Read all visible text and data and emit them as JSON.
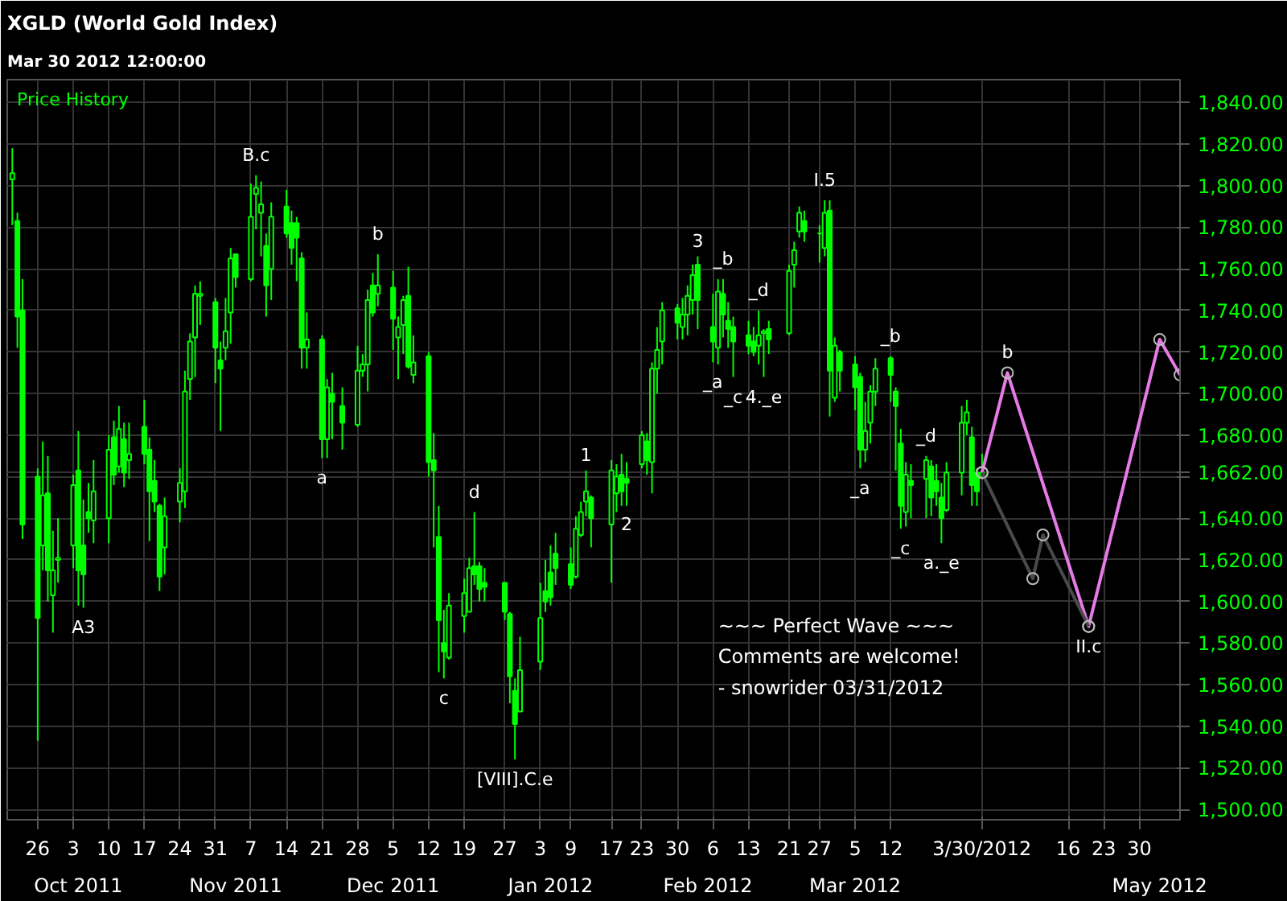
{
  "chart_data": {
    "type": "candlestick",
    "title": "XGLD (World Gold Index)",
    "subtitle": "Mar 30 2012 12:00:00",
    "color": "#00ff00",
    "x": [
      "2011-09-21",
      "2011-09-22",
      "2011-09-23",
      "2011-09-26",
      "2011-09-27",
      "2011-09-28",
      "2011-09-29",
      "2011-09-30",
      "2011-10-03",
      "2011-10-04",
      "2011-10-05",
      "2011-10-06",
      "2011-10-07",
      "2011-10-10",
      "2011-10-11",
      "2011-10-12",
      "2011-10-13",
      "2011-10-14",
      "2011-10-17",
      "2011-10-18",
      "2011-10-19",
      "2011-10-20",
      "2011-10-21",
      "2011-10-24",
      "2011-10-25",
      "2011-10-26",
      "2011-10-27",
      "2011-10-28",
      "2011-10-31",
      "2011-11-01",
      "2011-11-02",
      "2011-11-03",
      "2011-11-04",
      "2011-11-07",
      "2011-11-08",
      "2011-11-09",
      "2011-11-10",
      "2011-11-11",
      "2011-11-14",
      "2011-11-15",
      "2011-11-16",
      "2011-11-17",
      "2011-11-18",
      "2011-11-21",
      "2011-11-22",
      "2011-11-23",
      "2011-11-25",
      "2011-11-28",
      "2011-11-29",
      "2011-11-30",
      "2011-12-01",
      "2011-12-02",
      "2011-12-05",
      "2011-12-06",
      "2011-12-07",
      "2011-12-08",
      "2011-12-09",
      "2011-12-12",
      "2011-12-13",
      "2011-12-14",
      "2011-12-15",
      "2011-12-16",
      "2011-12-19",
      "2011-12-20",
      "2011-12-21",
      "2011-12-22",
      "2011-12-23",
      "2011-12-27",
      "2011-12-28",
      "2011-12-29",
      "2011-12-30",
      "2012-01-03",
      "2012-01-04",
      "2012-01-05",
      "2012-01-06",
      "2012-01-09",
      "2012-01-10",
      "2012-01-11",
      "2012-01-12",
      "2012-01-13",
      "2012-01-17",
      "2012-01-18",
      "2012-01-19",
      "2012-01-20",
      "2012-01-23",
      "2012-01-24",
      "2012-01-25",
      "2012-01-26",
      "2012-01-27",
      "2012-01-30",
      "2012-01-31",
      "2012-02-01",
      "2012-02-02",
      "2012-02-03",
      "2012-02-06",
      "2012-02-07",
      "2012-02-08",
      "2012-02-09",
      "2012-02-10",
      "2012-02-13",
      "2012-02-14",
      "2012-02-15",
      "2012-02-16",
      "2012-02-17",
      "2012-02-21",
      "2012-02-22",
      "2012-02-23",
      "2012-02-24",
      "2012-02-27",
      "2012-02-28",
      "2012-02-29",
      "2012-03-01",
      "2012-03-02",
      "2012-03-05",
      "2012-03-06",
      "2012-03-07",
      "2012-03-08",
      "2012-03-09",
      "2012-03-12",
      "2012-03-13",
      "2012-03-14",
      "2012-03-15",
      "2012-03-16",
      "2012-03-19",
      "2012-03-20",
      "2012-03-21",
      "2012-03-22",
      "2012-03-23",
      "2012-03-26",
      "2012-03-27",
      "2012-03-28",
      "2012-03-29",
      "2012-03-30"
    ],
    "ohlc": [
      [
        1803,
        1818,
        1781,
        1806
      ],
      [
        1783,
        1787,
        1722,
        1737
      ],
      [
        1740,
        1755,
        1630,
        1637
      ],
      [
        1660,
        1664,
        1533,
        1592
      ],
      [
        1627,
        1677,
        1615,
        1651
      ],
      [
        1652,
        1670,
        1600,
        1615
      ],
      [
        1603,
        1634,
        1585,
        1615
      ],
      [
        1620,
        1640,
        1609,
        1621
      ],
      [
        1627,
        1661,
        1616,
        1656
      ],
      [
        1663,
        1682,
        1598,
        1615
      ],
      [
        1627,
        1649,
        1597,
        1613
      ],
      [
        1643,
        1657,
        1633,
        1640
      ],
      [
        1639,
        1668,
        1628,
        1653
      ],
      [
        1640,
        1680,
        1628,
        1673
      ],
      [
        1679,
        1687,
        1656,
        1661
      ],
      [
        1665,
        1694,
        1662,
        1683
      ],
      [
        1678,
        1686,
        1655,
        1662
      ],
      [
        1668,
        1686,
        1659,
        1671
      ],
      [
        1684,
        1697,
        1666,
        1671
      ],
      [
        1673,
        1679,
        1629,
        1653
      ],
      [
        1658,
        1668,
        1643,
        1648
      ],
      [
        1646,
        1647,
        1605,
        1612
      ],
      [
        1626,
        1650,
        1613,
        1641
      ],
      [
        1648,
        1664,
        1638,
        1657
      ],
      [
        1653,
        1711,
        1645,
        1701
      ],
      [
        1707,
        1729,
        1697,
        1725
      ],
      [
        1727,
        1752,
        1708,
        1748
      ],
      [
        1747,
        1754,
        1733,
        1748
      ],
      [
        1744,
        1746,
        1705,
        1722
      ],
      [
        1716,
        1725,
        1682,
        1712
      ],
      [
        1722,
        1746,
        1716,
        1730
      ],
      [
        1739,
        1770,
        1724,
        1765
      ],
      [
        1767,
        1767,
        1751,
        1756
      ],
      [
        1755,
        1801,
        1754,
        1785
      ],
      [
        1796,
        1805,
        1779,
        1799
      ],
      [
        1787,
        1802,
        1766,
        1791
      ],
      [
        1771,
        1777,
        1737,
        1752
      ],
      [
        1760,
        1792,
        1745,
        1785
      ],
      [
        1790,
        1798,
        1775,
        1777
      ],
      [
        1782,
        1788,
        1762,
        1770
      ],
      [
        1782,
        1785,
        1754,
        1775
      ],
      [
        1765,
        1768,
        1712,
        1722
      ],
      [
        1722,
        1739,
        1712,
        1726
      ],
      [
        1726,
        1728,
        1669,
        1678
      ],
      [
        1678,
        1707,
        1669,
        1703
      ],
      [
        1700,
        1710,
        1678,
        1696
      ],
      [
        1694,
        1703,
        1673,
        1686
      ],
      [
        1685,
        1723,
        1684,
        1711
      ],
      [
        1711,
        1719,
        1708,
        1714
      ],
      [
        1714,
        1750,
        1701,
        1745
      ],
      [
        1752,
        1758,
        1737,
        1739
      ],
      [
        1748,
        1767,
        1742,
        1752
      ],
      [
        1751,
        1759,
        1721,
        1736
      ],
      [
        1727,
        1737,
        1707,
        1732
      ],
      [
        1733,
        1747,
        1719,
        1745
      ],
      [
        1747,
        1761,
        1712,
        1713
      ],
      [
        1709,
        1728,
        1705,
        1715
      ],
      [
        1718,
        1720,
        1660,
        1667
      ],
      [
        1668,
        1681,
        1626,
        1663
      ],
      [
        1631,
        1646,
        1566,
        1591
      ],
      [
        1580,
        1596,
        1563,
        1576
      ],
      [
        1573,
        1604,
        1572,
        1598
      ],
      [
        1593,
        1611,
        1585,
        1604
      ],
      [
        1595,
        1621,
        1595,
        1616
      ],
      [
        1617,
        1643,
        1608,
        1613
      ],
      [
        1617,
        1619,
        1600,
        1606
      ],
      [
        1609,
        1616,
        1600,
        1607
      ],
      [
        1609,
        1609,
        1591,
        1595
      ],
      [
        1594,
        1595,
        1551,
        1564
      ],
      [
        1557,
        1563,
        1524,
        1541
      ],
      [
        1547,
        1583,
        1547,
        1567
      ],
      [
        1571,
        1609,
        1567,
        1592
      ],
      [
        1605,
        1620,
        1595,
        1600
      ],
      [
        1614,
        1627,
        1598,
        1602
      ],
      [
        1623,
        1633,
        1608,
        1616
      ],
      [
        1618,
        1626,
        1606,
        1608
      ],
      [
        1612,
        1641,
        1611,
        1635
      ],
      [
        1632,
        1648,
        1631,
        1643
      ],
      [
        1648,
        1663,
        1641,
        1653
      ],
      [
        1650,
        1651,
        1626,
        1640
      ],
      [
        1637,
        1668,
        1609,
        1663
      ],
      [
        1652,
        1666,
        1643,
        1660
      ],
      [
        1661,
        1671,
        1646,
        1653
      ],
      [
        1659,
        1667,
        1646,
        1657
      ],
      [
        1666,
        1682,
        1664,
        1680
      ],
      [
        1677,
        1681,
        1661,
        1668
      ],
      [
        1667,
        1715,
        1652,
        1712
      ],
      [
        1712,
        1732,
        1700,
        1721
      ],
      [
        1725,
        1744,
        1714,
        1740
      ],
      [
        1741,
        1743,
        1726,
        1734
      ],
      [
        1732,
        1746,
        1726,
        1738
      ],
      [
        1738,
        1752,
        1728,
        1747
      ],
      [
        1745,
        1762,
        1738,
        1757
      ],
      [
        1762,
        1766,
        1731,
        1745
      ],
      [
        1732,
        1748,
        1715,
        1725
      ],
      [
        1722,
        1755,
        1714,
        1749
      ],
      [
        1748,
        1755,
        1727,
        1738
      ],
      [
        1735,
        1744,
        1722,
        1731
      ],
      [
        1732,
        1737,
        1708,
        1725
      ],
      [
        1728,
        1735,
        1719,
        1723
      ],
      [
        1725,
        1732,
        1718,
        1720
      ],
      [
        1723,
        1740,
        1714,
        1728
      ],
      [
        1729,
        1731,
        1708,
        1730
      ],
      [
        1731,
        1735,
        1719,
        1726
      ],
      [
        1729,
        1762,
        1728,
        1759
      ],
      [
        1762,
        1773,
        1751,
        1769
      ],
      [
        1778,
        1790,
        1775,
        1787
      ],
      [
        1783,
        1788,
        1773,
        1778
      ],
      [
        1777,
        1781,
        1763,
        1777
      ],
      [
        1770,
        1793,
        1766,
        1787
      ],
      [
        1788,
        1793,
        1689,
        1711
      ],
      [
        1698,
        1727,
        1696,
        1723
      ],
      [
        1720,
        1721,
        1701,
        1711
      ],
      [
        1714,
        1718,
        1692,
        1703
      ],
      [
        1708,
        1710,
        1664,
        1673
      ],
      [
        1673,
        1696,
        1667,
        1682
      ],
      [
        1686,
        1704,
        1676,
        1701
      ],
      [
        1701,
        1717,
        1694,
        1712
      ],
      [
        1717,
        1718,
        1696,
        1709
      ],
      [
        1701,
        1703,
        1663,
        1694
      ],
      [
        1676,
        1683,
        1635,
        1646
      ],
      [
        1643,
        1667,
        1636,
        1661
      ],
      [
        1658,
        1666,
        1640,
        1656
      ],
      [
        1659,
        1670,
        1640,
        1668
      ],
      [
        1665,
        1668,
        1641,
        1650
      ],
      [
        1658,
        1666,
        1646,
        1653
      ],
      [
        1650,
        1657,
        1628,
        1640
      ],
      [
        1644,
        1667,
        1643,
        1662
      ],
      [
        1662,
        1694,
        1651,
        1686
      ],
      [
        1686,
        1697,
        1680,
        1691
      ],
      [
        1679,
        1684,
        1646,
        1656
      ],
      [
        1662,
        1664,
        1646,
        1653
      ],
      [
        1660,
        1671,
        1660,
        1662
      ]
    ],
    "series": [
      {
        "type": "line",
        "color": "#e67be6",
        "x": [
          "2012-03-30",
          "2012-04-04",
          "2012-04-20",
          "2012-05-04",
          "2012-05-08"
        ],
        "values": [
          1662,
          1710,
          1588,
          1726,
          1709
        ]
      },
      {
        "type": "line",
        "color": "#4a4a4a",
        "x": [
          "2012-03-30",
          "2012-04-09",
          "2012-04-11",
          "2012-04-20"
        ],
        "values": [
          1662,
          1611,
          1632,
          1588
        ]
      }
    ],
    "marker": "circle",
    "xlim": [
      "2011-09-20",
      "2012-05-08"
    ],
    "xticks": [
      {
        "value": "2011-09-26",
        "label": "26"
      },
      {
        "value": "2011-10-03",
        "label": "3"
      },
      {
        "value": "2011-10-10",
        "label": "10"
      },
      {
        "value": "2011-10-17",
        "label": "17"
      },
      {
        "value": "2011-10-24",
        "label": "24"
      },
      {
        "value": "2011-10-31",
        "label": "31"
      },
      {
        "value": "2011-11-07",
        "label": "7"
      },
      {
        "value": "2011-11-14",
        "label": "14"
      },
      {
        "value": "2011-11-21",
        "label": "21"
      },
      {
        "value": "2011-11-28",
        "label": "28"
      },
      {
        "value": "2011-12-05",
        "label": "5"
      },
      {
        "value": "2011-12-12",
        "label": "12"
      },
      {
        "value": "2011-12-19",
        "label": "19"
      },
      {
        "value": "2011-12-27",
        "label": "27"
      },
      {
        "value": "2012-01-03",
        "label": "3"
      },
      {
        "value": "2012-01-09",
        "label": "9"
      },
      {
        "value": "2012-01-17",
        "label": "17"
      },
      {
        "value": "2012-01-23",
        "label": "23"
      },
      {
        "value": "2012-01-30",
        "label": "30"
      },
      {
        "value": "2012-02-06",
        "label": "6"
      },
      {
        "value": "2012-02-13",
        "label": "13"
      },
      {
        "value": "2012-02-21",
        "label": "21"
      },
      {
        "value": "2012-02-27",
        "label": "27"
      },
      {
        "value": "2012-03-05",
        "label": "5"
      },
      {
        "value": "2012-03-12",
        "label": "12"
      },
      {
        "value": "2012-03-30",
        "label": "3/30/2012"
      },
      {
        "value": "2012-04-16",
        "label": "16"
      },
      {
        "value": "2012-04-23",
        "label": "23"
      },
      {
        "value": "2012-04-30",
        "label": "30"
      }
    ],
    "x2lim": [
      "2011-09-20",
      "2012-05-08"
    ],
    "x2ticks": [
      {
        "value": "2011-10-04",
        "label": "Oct 2011"
      },
      {
        "value": "2011-11-04",
        "label": "Nov 2011"
      },
      {
        "value": "2011-12-05",
        "label": "Dec 2011"
      },
      {
        "value": "2012-01-05",
        "label": "Jan 2012"
      },
      {
        "value": "2012-02-05",
        "label": "Feb 2012"
      },
      {
        "value": "2012-03-05",
        "label": "Mar 2012"
      },
      {
        "value": "2012-05-04",
        "label": "May 2012"
      }
    ],
    "ylim": [
      1495,
      1851
    ],
    "yticks": [
      {
        "value": 1500,
        "label": "1,500.00"
      },
      {
        "value": 1520,
        "label": "1,520.00"
      },
      {
        "value": 1540,
        "label": "1,540.00"
      },
      {
        "value": 1560,
        "label": "1,560.00"
      },
      {
        "value": 1580,
        "label": "1,580.00"
      },
      {
        "value": 1600,
        "label": "1,600.00"
      },
      {
        "value": 1620,
        "label": "1,620.00"
      },
      {
        "value": 1640,
        "label": "1,640.00"
      },
      {
        "value": 1660,
        "label": null
      },
      {
        "value": 1662,
        "label": "1,662.00"
      },
      {
        "value": 1680,
        "label": "1,680.00"
      },
      {
        "value": 1700,
        "label": "1,700.00"
      },
      {
        "value": 1720,
        "label": "1,720.00"
      },
      {
        "value": 1740,
        "label": "1,740.00"
      },
      {
        "value": 1760,
        "label": "1,760.00"
      },
      {
        "value": 1780,
        "label": "1,780.00"
      },
      {
        "value": 1800,
        "label": "1,800.00"
      },
      {
        "value": 1820,
        "label": "1,820.00"
      },
      {
        "value": 1840,
        "label": "1,840.00"
      }
    ],
    "grid": true,
    "annotations": [
      "Price History",
      {
        "text": "A3",
        "x": "2011-10-05",
        "y": 1597
      },
      {
        "text": "B.c",
        "x": "2011-11-08",
        "y": 1805
      },
      {
        "text": "a",
        "x": "2011-11-21",
        "y": 1669
      },
      {
        "text": "b",
        "x": "2011-12-02",
        "y": 1767
      },
      {
        "text": "c",
        "x": "2011-12-15",
        "y": 1563
      },
      {
        "text": "d",
        "x": "2011-12-21",
        "y": 1643
      },
      {
        "text": "[VIII].C.e",
        "x": "2011-12-29",
        "y": 1524
      },
      {
        "text": "1",
        "x": "2012-01-12",
        "y": 1663
      },
      {
        "text": "2",
        "x": "2012-01-20",
        "y": 1646
      },
      {
        "text": "3",
        "x": "2012-02-03",
        "y": 1766
      },
      {
        "text": "_a",
        "x": "2012-02-06",
        "y": 1715
      },
      {
        "text": "_b",
        "x": "2012-02-08",
        "y": 1755
      },
      {
        "text": "_c",
        "x": "2012-02-10",
        "y": 1708
      },
      {
        "text": "_d",
        "x": "2012-02-15",
        "y": 1740
      },
      {
        "text": "4._e",
        "x": "2012-02-16",
        "y": 1708
      },
      {
        "text": "I.5",
        "x": "2012-02-28",
        "y": 1793
      },
      {
        "text": "_a",
        "x": "2012-03-06",
        "y": 1664
      },
      {
        "text": "_b",
        "x": "2012-03-12",
        "y": 1718
      },
      {
        "text": "_c",
        "x": "2012-03-14",
        "y": 1635
      },
      {
        "text": "_d",
        "x": "2012-03-19",
        "y": 1670
      },
      {
        "text": "a._e",
        "x": "2012-03-22",
        "y": 1628
      },
      {
        "text": "b",
        "x": "2012-04-04",
        "y": 1710
      },
      {
        "text": "II.c",
        "x": "2012-04-20",
        "y": 1588
      },
      "~~~ Perfect Wave ~~~",
      "Comments are welcome!",
      "- snowrider  03/31/2012"
    ]
  }
}
